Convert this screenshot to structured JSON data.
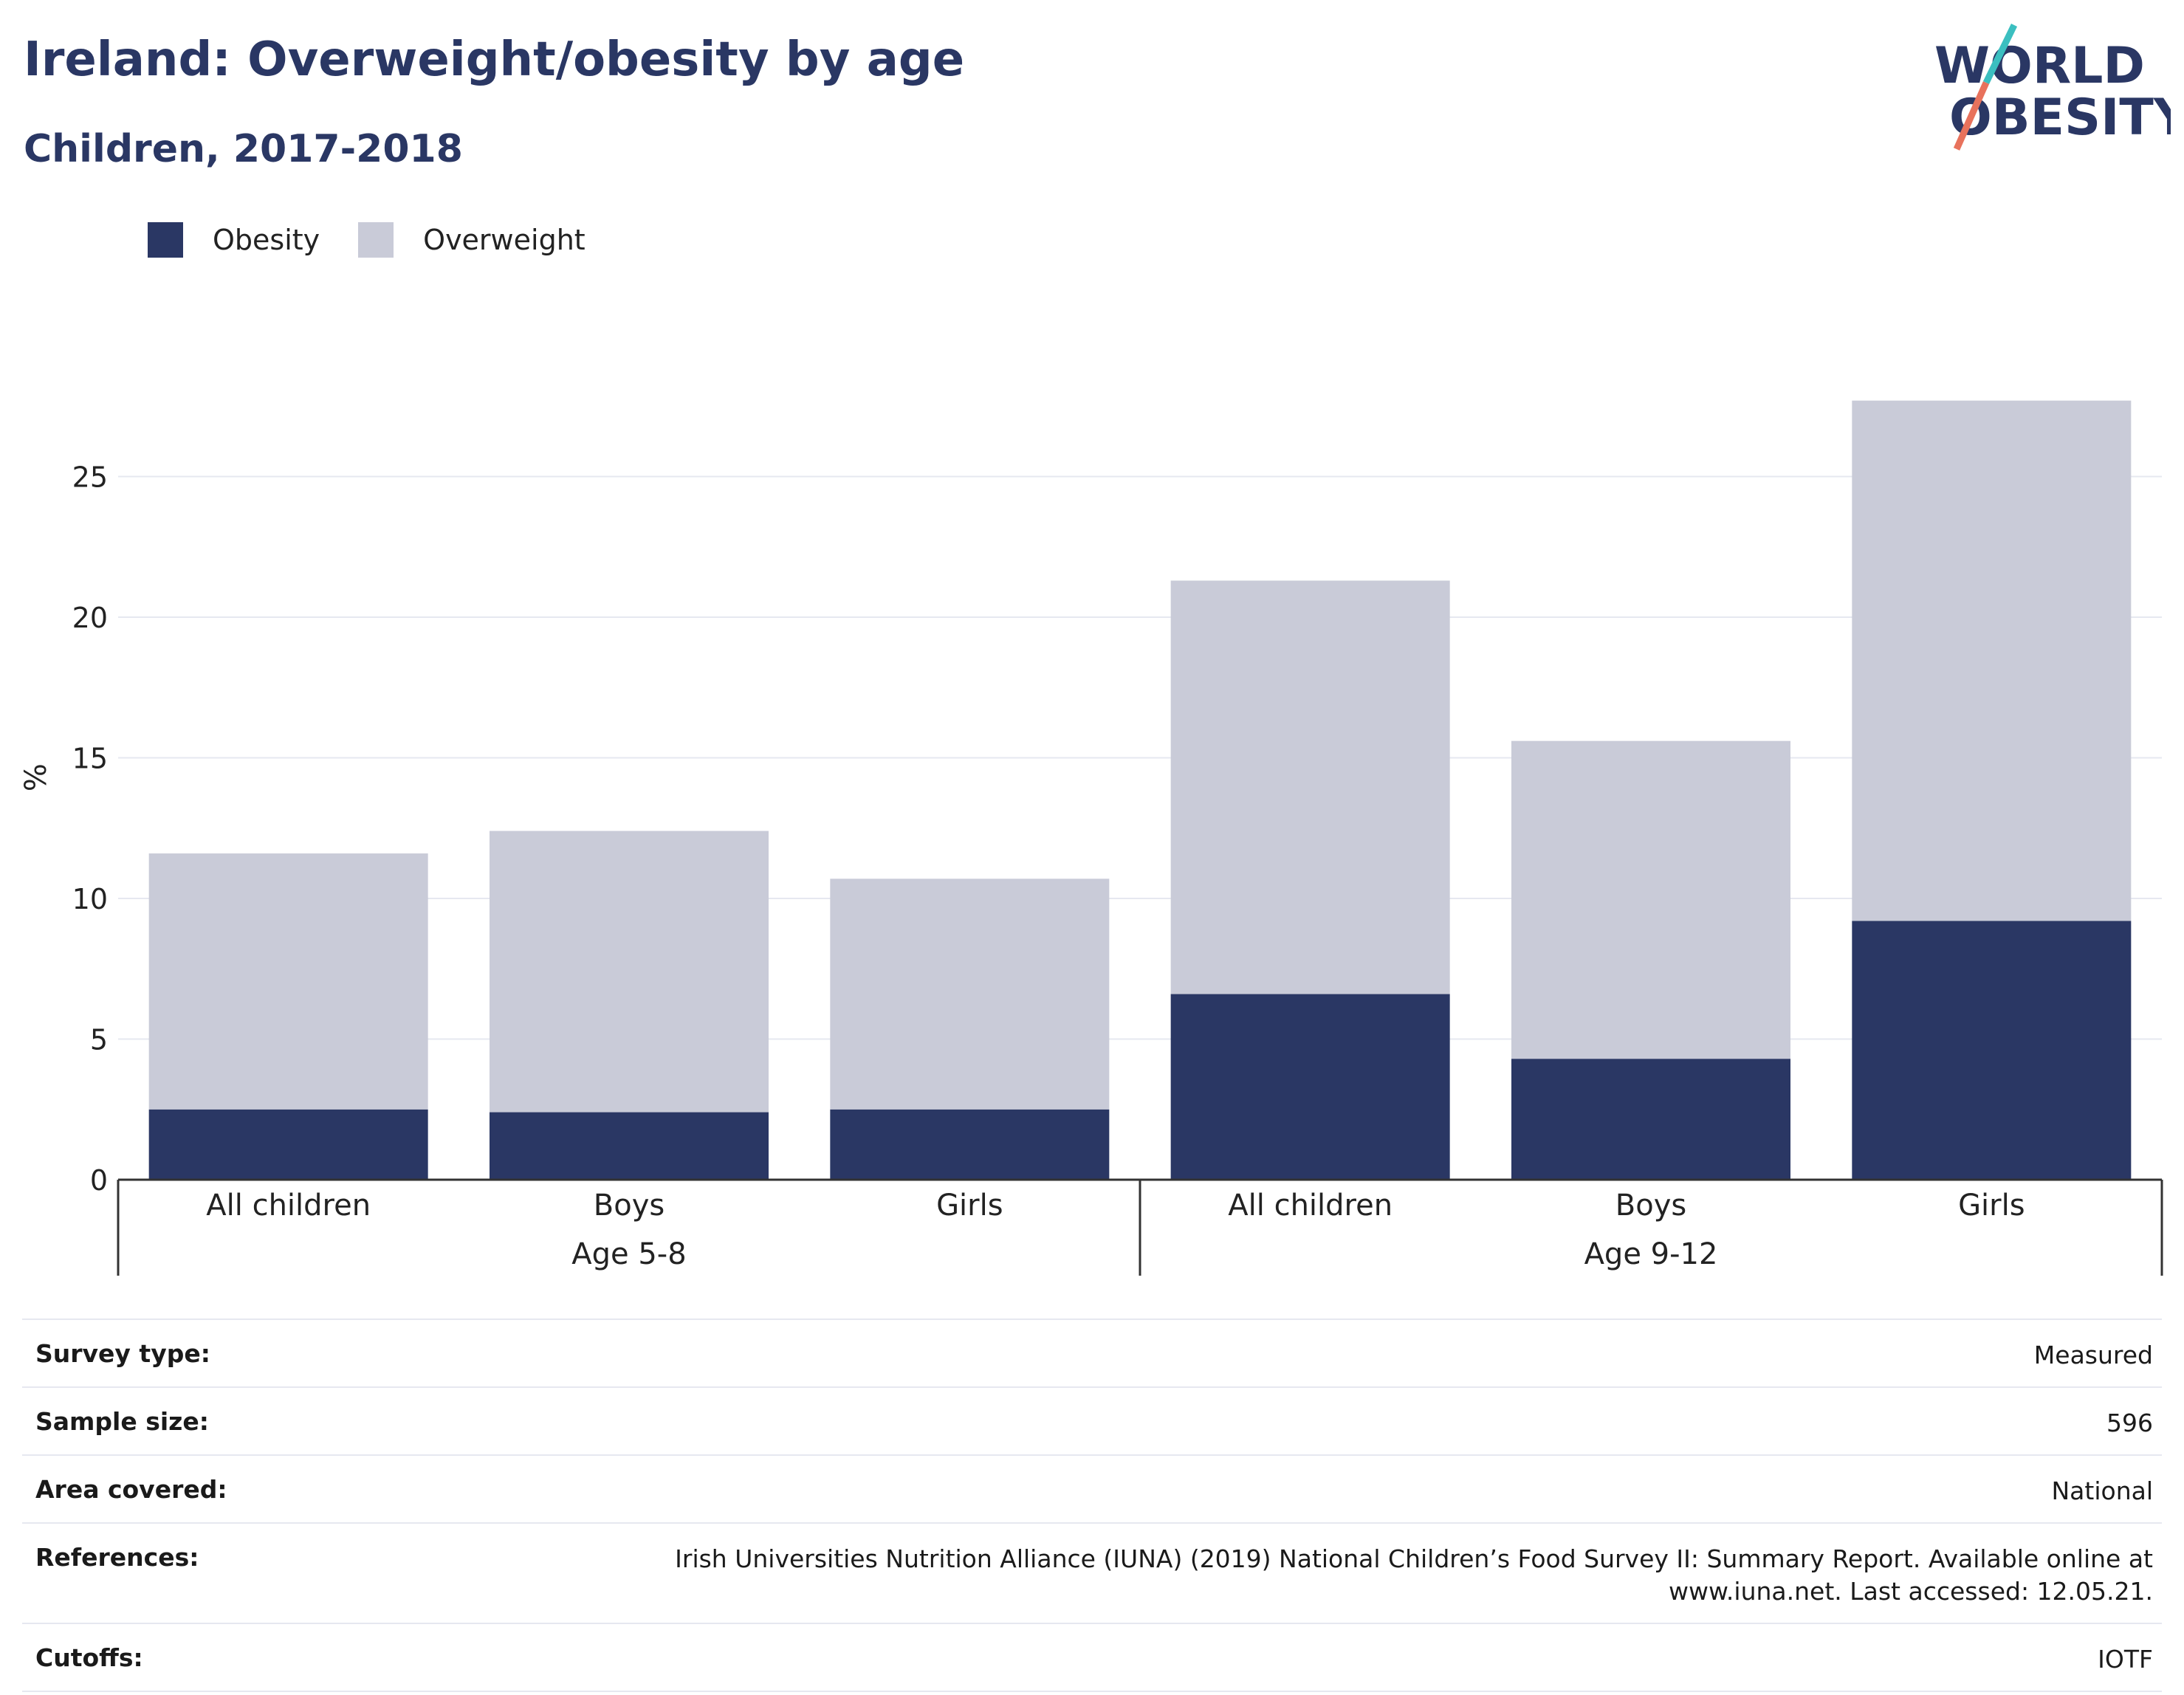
{
  "header": {
    "title": "Ireland: Overweight/obesity by age",
    "subtitle": "Children, 2017-2018"
  },
  "logo": {
    "line1": "WORLD",
    "line2": "OBESITY",
    "colors": {
      "text": "#2a3764",
      "slash_top": "#3bbfc0",
      "slash_bottom": "#e8725c"
    }
  },
  "colors": {
    "obesity": "#2a3764",
    "overweight": "#c9cbd8",
    "grid": "#e6e8f0",
    "axis": "#333333"
  },
  "chart_data": {
    "type": "bar",
    "stacked": true,
    "categories": [
      "All children",
      "Boys",
      "Girls",
      "All children",
      "Boys",
      "Girls"
    ],
    "groups": [
      {
        "label": "Age 5-8",
        "count": 3
      },
      {
        "label": "Age 9-12",
        "count": 3
      }
    ],
    "series": [
      {
        "name": "Obesity",
        "values": [
          2.5,
          2.4,
          2.5,
          6.6,
          4.3,
          9.2
        ]
      },
      {
        "name": "Overweight",
        "values": [
          9.1,
          10.0,
          8.2,
          14.7,
          11.3,
          18.5
        ]
      }
    ],
    "ylabel": "%",
    "xlabel": "",
    "ylim": [
      0,
      28
    ],
    "yticks": [
      0,
      5,
      10,
      15,
      20,
      25
    ],
    "grid": true,
    "legend_position": "top-left"
  },
  "meta": {
    "rows": [
      {
        "key": "Survey type:",
        "value": "Measured"
      },
      {
        "key": "Sample size:",
        "value": "596"
      },
      {
        "key": "Area covered:",
        "value": "National"
      },
      {
        "key": "References:",
        "value": "Irish Universities Nutrition Alliance (IUNA) (2019) National Children’s Food Survey II: Summary Report. Available online at www.iuna.net. Last accessed: 12.05.21."
      },
      {
        "key": "Cutoffs:",
        "value": "IOTF"
      }
    ]
  }
}
